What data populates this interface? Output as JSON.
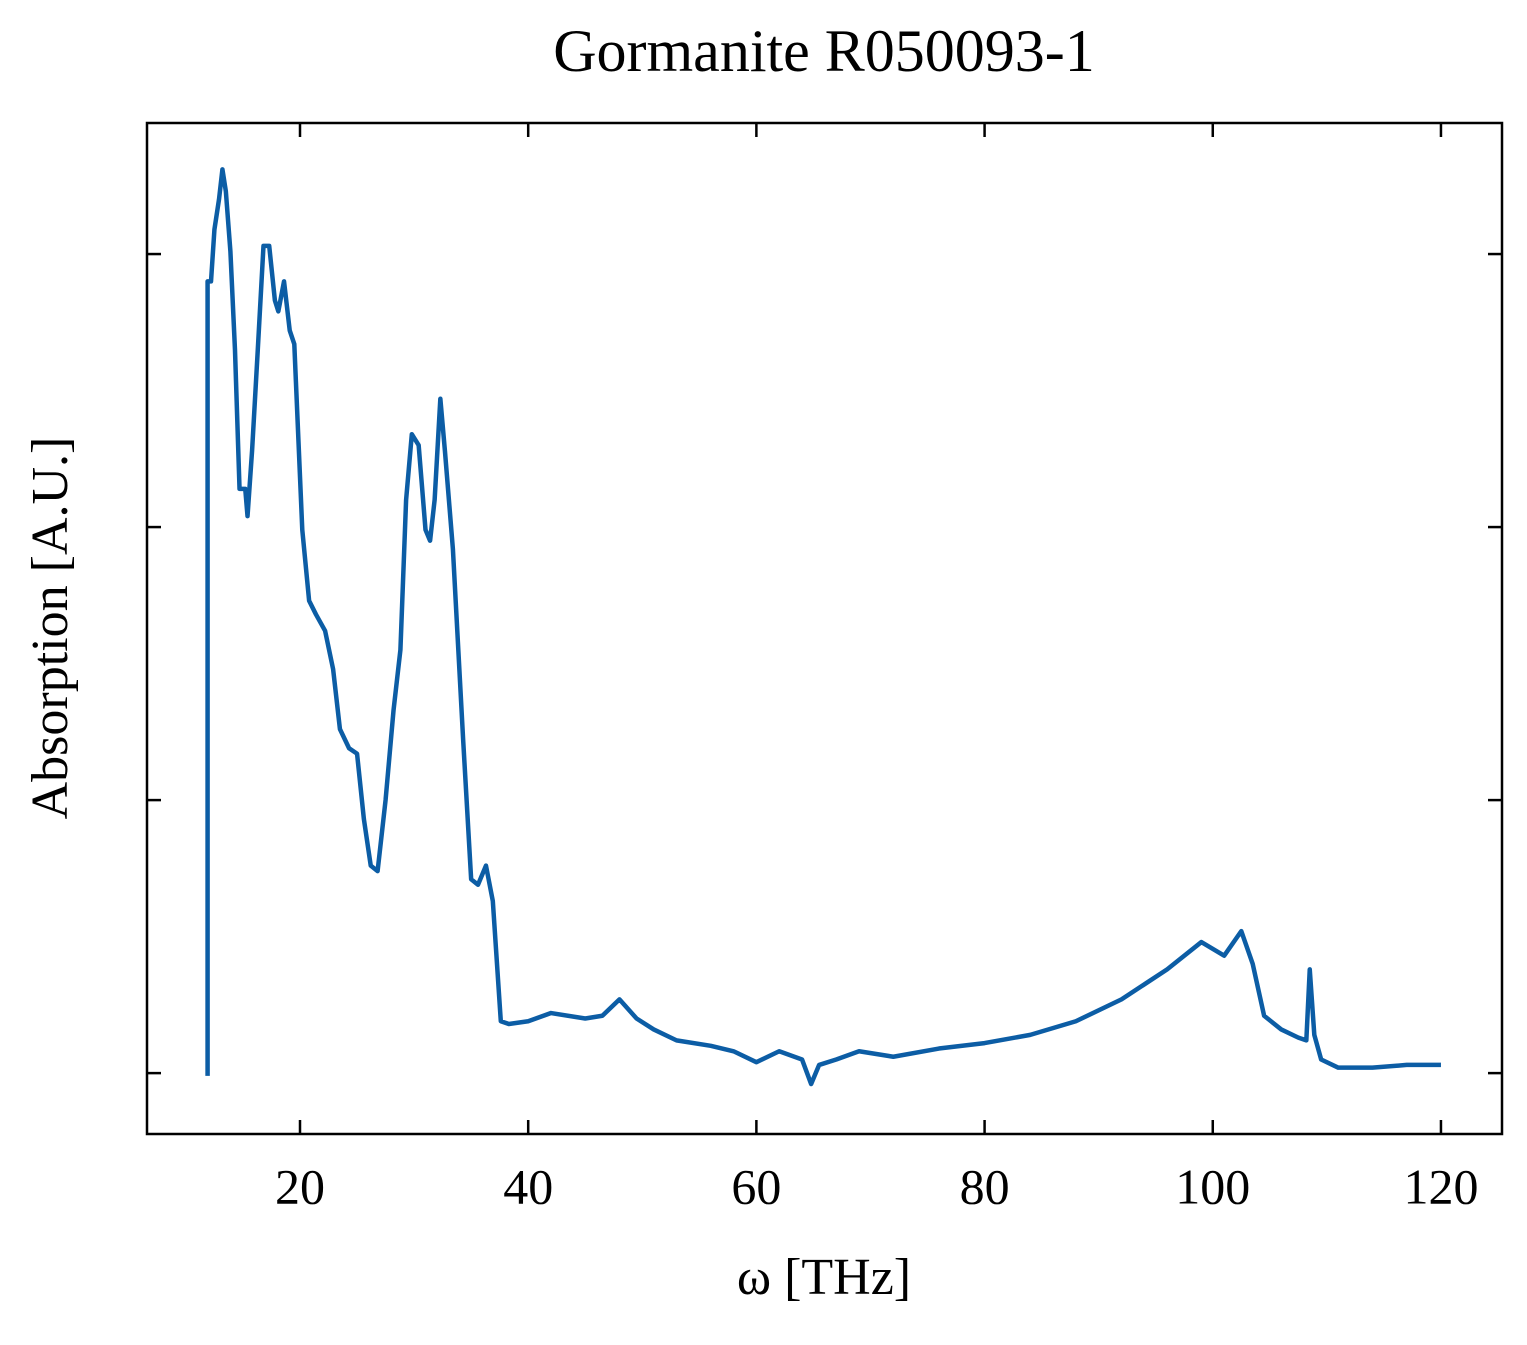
{
  "chart_data": {
    "type": "line",
    "title": "Gormanite R050093-1",
    "x_label": "ω [THz]",
    "y_label": "Absorption [A.U.]",
    "xlim": [
      6.59,
      125.35
    ],
    "ylim": [
      -0.223,
      3.48
    ],
    "xticks": [
      20,
      40,
      60,
      80,
      100,
      120
    ],
    "yticks": [
      0,
      1,
      2,
      3
    ],
    "y_tick_labels": false,
    "grid": false,
    "series": [
      {
        "color": "#0c5da5",
        "x": [
          11.9,
          11.9,
          12.2,
          12.5,
          12.9,
          13.2,
          13.5,
          13.9,
          14.3,
          14.7,
          15.2,
          15.4,
          15.8,
          16.3,
          16.8,
          17.3,
          17.8,
          18.1,
          18.6,
          19.1,
          19.5,
          20.2,
          20.8,
          21.4,
          22.2,
          22.9,
          23.5,
          24.3,
          25.0,
          25.6,
          26.2,
          26.8,
          27.5,
          28.2,
          28.8,
          29.3,
          29.8,
          30.4,
          31.0,
          31.4,
          31.8,
          32.3,
          32.7,
          33.4,
          34.3,
          35.0,
          35.6,
          36.3,
          36.9,
          37.6,
          38.3,
          40.0,
          42.0,
          45.0,
          46.5,
          48.0,
          49.5,
          51.0,
          53.0,
          56.0,
          58.0,
          60.0,
          62.0,
          64.0,
          64.8,
          65.5,
          67.0,
          69.0,
          72.0,
          76.0,
          80.0,
          84.0,
          88.0,
          92.0,
          96.0,
          99.0,
          101.0,
          102.5,
          103.5,
          104.5,
          106.0,
          107.5,
          108.2,
          108.5,
          108.9,
          109.5,
          111.0,
          114.0,
          117.0,
          120.0
        ],
        "values": [
          -0.01,
          2.9,
          2.9,
          3.09,
          3.2,
          3.31,
          3.23,
          3.01,
          2.65,
          2.14,
          2.14,
          2.04,
          2.28,
          2.65,
          3.03,
          3.03,
          2.83,
          2.79,
          2.9,
          2.72,
          2.67,
          1.99,
          1.73,
          1.68,
          1.62,
          1.48,
          1.26,
          1.19,
          1.17,
          0.93,
          0.76,
          0.74,
          1.0,
          1.33,
          1.55,
          2.1,
          2.34,
          2.3,
          1.99,
          1.95,
          2.1,
          2.47,
          2.28,
          1.92,
          1.22,
          0.71,
          0.69,
          0.76,
          0.63,
          0.19,
          0.18,
          0.19,
          0.22,
          0.2,
          0.21,
          0.27,
          0.2,
          0.16,
          0.12,
          0.1,
          0.08,
          0.04,
          0.08,
          0.05,
          -0.04,
          0.03,
          0.05,
          0.08,
          0.06,
          0.09,
          0.11,
          0.14,
          0.19,
          0.27,
          0.38,
          0.48,
          0.43,
          0.52,
          0.4,
          0.21,
          0.16,
          0.13,
          0.12,
          0.38,
          0.14,
          0.05,
          0.02,
          0.02,
          0.03,
          0.03
        ]
      }
    ]
  }
}
